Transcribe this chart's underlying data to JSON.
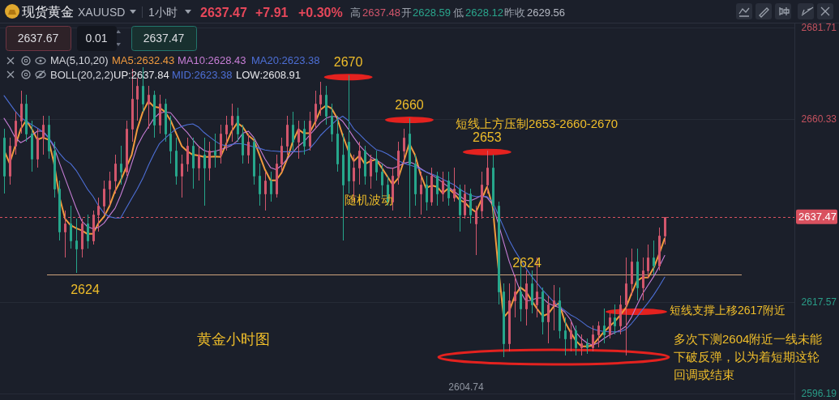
{
  "chart_data": {
    "type": "candlestick",
    "title": "现货黄金",
    "subtitle": "XAUUSD",
    "categories": [
      null,
      null,
      null,
      null,
      null,
      null,
      null,
      null,
      null,
      null,
      null,
      null,
      null,
      null,
      null,
      null,
      null,
      null,
      null,
      null,
      null,
      null,
      null,
      null,
      null,
      null,
      null,
      null,
      null,
      null,
      null,
      null,
      null,
      null,
      null,
      null,
      null,
      null,
      null,
      null,
      null,
      null,
      null,
      null,
      null,
      null,
      null,
      null,
      null,
      null,
      null,
      null,
      null,
      null,
      null,
      null,
      null,
      null,
      null,
      null,
      null,
      null,
      null,
      null,
      null,
      null,
      null,
      null,
      null,
      null,
      null,
      null,
      null,
      null,
      null,
      null,
      null,
      null,
      null,
      null,
      null,
      null,
      null,
      null,
      null,
      null,
      null,
      null,
      null,
      null,
      null,
      null,
      null,
      null,
      null,
      null,
      null,
      null,
      null,
      null,
      null,
      null,
      null,
      null,
      null,
      null,
      null,
      null,
      null,
      null,
      null,
      null,
      null,
      null,
      null,
      null,
      null,
      null,
      null,
      null
    ],
    "ohlc": [
      [
        2656,
        2658,
        2643,
        2647
      ],
      [
        2647,
        2656,
        2645,
        2654
      ],
      [
        2654,
        2662,
        2652,
        2660
      ],
      [
        2660,
        2667,
        2657,
        2664
      ],
      [
        2664,
        2666,
        2655,
        2657
      ],
      [
        2657,
        2660,
        2648,
        2651
      ],
      [
        2651,
        2658,
        2649,
        2656
      ],
      [
        2656,
        2661,
        2652,
        2659
      ],
      [
        2659,
        2661,
        2651,
        2653
      ],
      [
        2653,
        2655,
        2642,
        2644
      ],
      [
        2644,
        2646,
        2632,
        2634
      ],
      [
        2634,
        2639,
        2628,
        2636
      ],
      [
        2636,
        2640,
        2630,
        2632
      ],
      [
        2632,
        2637,
        2624.3,
        2630
      ],
      [
        2630,
        2637,
        2628,
        2636
      ],
      [
        2636,
        2638,
        2630,
        2632
      ],
      [
        2632,
        2639,
        2631,
        2638
      ],
      [
        2638,
        2642,
        2634,
        2640
      ],
      [
        2640,
        2646,
        2638,
        2644
      ],
      [
        2644,
        2648,
        2640,
        2646
      ],
      [
        2646,
        2652,
        2643,
        2650
      ],
      [
        2650,
        2654,
        2645,
        2648
      ],
      [
        2648,
        2660,
        2647,
        2658
      ],
      [
        2658,
        2672,
        2655,
        2665
      ],
      [
        2665,
        2670,
        2660,
        2668
      ],
      [
        2668,
        2672.5,
        2662,
        2664
      ],
      [
        2664,
        2668,
        2658,
        2666
      ],
      [
        2666,
        2667,
        2656,
        2659
      ],
      [
        2659,
        2666,
        2657,
        2664
      ],
      [
        2664,
        2665,
        2655,
        2657
      ],
      [
        2657,
        2661,
        2650,
        2653
      ],
      [
        2653,
        2656,
        2645,
        2647
      ],
      [
        2647,
        2652,
        2642,
        2650
      ],
      [
        2650,
        2656,
        2648,
        2654
      ],
      [
        2654,
        2656,
        2644,
        2649
      ],
      [
        2649,
        2654,
        2646,
        2652
      ],
      [
        2652,
        2656,
        2640,
        2649
      ],
      [
        2649,
        2655,
        2646,
        2653
      ],
      [
        2653,
        2657,
        2649,
        2652
      ],
      [
        2652,
        2659,
        2650,
        2657
      ],
      [
        2657,
        2661,
        2653,
        2659
      ],
      [
        2659,
        2664,
        2655,
        2661
      ],
      [
        2661,
        2663,
        2655,
        2657
      ],
      [
        2657,
        2659,
        2650,
        2652
      ],
      [
        2652,
        2657,
        2650,
        2655
      ],
      [
        2655,
        2656,
        2645,
        2647
      ],
      [
        2647,
        2650,
        2640,
        2643
      ],
      [
        2643,
        2648,
        2639,
        2646
      ],
      [
        2646,
        2648,
        2641,
        2643
      ],
      [
        2643,
        2652,
        2642,
        2650
      ],
      [
        2650,
        2656,
        2648,
        2654
      ],
      [
        2654,
        2661,
        2652,
        2659
      ],
      [
        2659,
        2662,
        2653,
        2655
      ],
      [
        2655,
        2660,
        2651,
        2658
      ],
      [
        2658,
        2660,
        2652,
        2654
      ],
      [
        2654,
        2662,
        2653,
        2660
      ],
      [
        2660,
        2667,
        2658,
        2664
      ],
      [
        2664,
        2669,
        2661,
        2666
      ],
      [
        2666,
        2668,
        2659,
        2661
      ],
      [
        2661,
        2664,
        2655,
        2657
      ],
      [
        2657,
        2661,
        2648,
        2650
      ],
      [
        2652,
        2657,
        2632,
        2645
      ],
      [
        2655,
        2670.5,
        2643,
        2646
      ],
      [
        2646,
        2652,
        2641,
        2649
      ],
      [
        2649,
        2655,
        2645,
        2653
      ],
      [
        2653,
        2654,
        2645,
        2647
      ],
      [
        2647,
        2652,
        2644,
        2651
      ],
      [
        2651,
        2653,
        2646,
        2648
      ],
      [
        2648,
        2650,
        2642,
        2645
      ],
      [
        2645,
        2647,
        2640,
        2641
      ],
      [
        2641,
        2649,
        2639,
        2647
      ],
      [
        2647,
        2655,
        2645,
        2653
      ],
      [
        2653,
        2658,
        2650,
        2656
      ],
      [
        2657,
        2660.5,
        2637.5,
        2650
      ],
      [
        2650,
        2652,
        2640,
        2643
      ],
      [
        2643,
        2648,
        2638,
        2645
      ],
      [
        2645,
        2647,
        2639,
        2641
      ],
      [
        2641,
        2649,
        2640,
        2647
      ],
      [
        2647,
        2648,
        2640,
        2643
      ],
      [
        2643,
        2648,
        2641,
        2646
      ],
      [
        2646,
        2648,
        2640,
        2642
      ],
      [
        2642,
        2649,
        2641,
        2644
      ],
      [
        2644,
        2645,
        2634,
        2638
      ],
      [
        2638,
        2645,
        2637,
        2643
      ],
      [
        2643,
        2644,
        2636,
        2638
      ],
      [
        2636,
        2640,
        2628.5,
        2639
      ],
      [
        2639,
        2648,
        2637,
        2645
      ],
      [
        2645,
        2653,
        2643,
        2649
      ],
      [
        2649,
        2652,
        2637,
        2640
      ],
      [
        2640,
        2641,
        2617,
        2620
      ],
      [
        2620,
        2622,
        2604.74,
        2608
      ],
      [
        2608,
        2622,
        2606,
        2618
      ],
      [
        2618,
        2624,
        2614,
        2620
      ],
      [
        2620,
        2626,
        2613,
        2616
      ],
      [
        2616,
        2625,
        2612,
        2622
      ],
      [
        2622,
        2625,
        2615,
        2617
      ],
      [
        2617,
        2628,
        2614,
        2620
      ],
      [
        2620,
        2621,
        2610,
        2613
      ],
      [
        2613,
        2619,
        2608,
        2617
      ],
      [
        2617,
        2621.5,
        2611,
        2618
      ],
      [
        2618,
        2621,
        2609,
        2611
      ],
      [
        2611,
        2614,
        2605,
        2609
      ],
      [
        2609,
        2613,
        2606,
        2611
      ],
      [
        2611,
        2612,
        2605,
        2607
      ],
      [
        2607,
        2610,
        2605,
        2608
      ],
      [
        2608,
        2609,
        2605.5,
        2607
      ],
      [
        2607,
        2612,
        2606,
        2610
      ],
      [
        2610,
        2613,
        2607,
        2612
      ],
      [
        2612,
        2616,
        2608,
        2610
      ],
      [
        2610,
        2615,
        2609,
        2614
      ],
      [
        2614,
        2617,
        2610,
        2612
      ],
      [
        2612,
        2619,
        2610,
        2617
      ],
      [
        2617,
        2628,
        2605,
        2622
      ],
      [
        2622,
        2630,
        2619,
        2627
      ],
      [
        2627,
        2630,
        2618,
        2621
      ],
      [
        2621,
        2628,
        2618,
        2625
      ],
      [
        2625,
        2631,
        2623,
        2628
      ],
      [
        2628,
        2632,
        2624,
        2626
      ],
      [
        2626,
        2635,
        2625,
        2633
      ],
      [
        2633,
        2637.48,
        2631,
        2637.47
      ]
    ],
    "colors": [
      "#26a68b",
      "#d2566c",
      "#d2566c",
      "#d2566c",
      "#26a68b",
      "#26a68b",
      "#d2566c",
      "#d2566c",
      "#26a68b",
      "#26a68b",
      "#26a68b",
      "#d2566c",
      "#26a68b",
      "#26a68b",
      "#d2566c",
      "#26a68b",
      "#d2566c",
      "#d2566c",
      "#d2566c",
      "#d2566c",
      "#d2566c",
      "#26a68b",
      "#d2566c",
      "#d2566c",
      "#d2566c",
      "#26a68b",
      "#d2566c",
      "#26a68b",
      "#d2566c",
      "#26a68b",
      "#26a68b",
      "#26a68b",
      "#d2566c",
      "#d2566c",
      "#26a68b",
      "#d2566c",
      "#26a68b",
      "#d2566c",
      "#26a68b",
      "#d2566c",
      "#d2566c",
      "#d2566c",
      "#26a68b",
      "#26a68b",
      "#d2566c",
      "#26a68b",
      "#26a68b",
      "#d2566c",
      "#26a68b",
      "#d2566c",
      "#d2566c",
      "#d2566c",
      "#26a68b",
      "#d2566c",
      "#26a68b",
      "#d2566c",
      "#d2566c",
      "#d2566c",
      "#26a68b",
      "#26a68b",
      "#26a68b",
      "#26a68b",
      "#26a68b",
      "#d2566c",
      "#d2566c",
      "#26a68b",
      "#d2566c",
      "#26a68b",
      "#26a68b",
      "#26a68b",
      "#d2566c",
      "#d2566c",
      "#d2566c",
      "#26a68b",
      "#26a68b",
      "#d2566c",
      "#26a68b",
      "#d2566c",
      "#26a68b",
      "#d2566c",
      "#26a68b",
      "#d2566c",
      "#26a68b",
      "#d2566c",
      "#26a68b",
      "#d2566c",
      "#d2566c",
      "#d2566c",
      "#26a68b",
      "#26a68b",
      "#26a68b",
      "#d2566c",
      "#d2566c",
      "#26a68b",
      "#d2566c",
      "#26a68b",
      "#d2566c",
      "#26a68b",
      "#d2566c",
      "#d2566c",
      "#26a68b",
      "#26a68b",
      "#d2566c",
      "#26a68b",
      "#d2566c",
      "#26a68b",
      "#d2566c",
      "#d2566c",
      "#26a68b",
      "#d2566c",
      "#26a68b",
      "#d2566c",
      "#d2566c",
      "#d2566c",
      "#26a68b",
      "#d2566c",
      "#d2566c",
      "#26a68b",
      "#d2566c",
      "#d2566c"
    ],
    "series": [
      {
        "name": "MA5:2632.43",
        "type": "line",
        "color": "#f09a3e",
        "values": [
          2653,
          2650,
          2654,
          2658,
          2660,
          2658,
          2655.5,
          2656,
          2655.5,
          2650,
          2642,
          2637,
          2635.5,
          2634.8,
          2634.3,
          2633.5,
          2633.5,
          2636,
          2637.5,
          2640,
          2643.5,
          2646,
          2649,
          2652,
          2658,
          2662,
          2664.5,
          2663.2,
          2663,
          2662,
          2660,
          2657,
          2654,
          2652.8,
          2652,
          2651.8,
          2651.5,
          2651.5,
          2651.6,
          2651.5,
          2654.5,
          2657.5,
          2659.4,
          2658.5,
          2656.5,
          2655.4,
          2652,
          2648.5,
          2646,
          2646,
          2647.8,
          2651,
          2655,
          2657.9,
          2657,
          2657,
          2659.5,
          2662.5,
          2663.5,
          2662.8,
          2660.5,
          2656.5,
          2653,
          2650.5,
          2651.8,
          2649.8,
          2650.5,
          2650.9,
          2649,
          2647,
          2645,
          2646.5,
          2650.5,
          2654.6,
          2652,
          2647.5,
          2644.2,
          2644.8,
          2644.5,
          2643,
          2644.1,
          2643,
          2641.5,
          2640.8,
          2639.5,
          2638.6,
          2641.5,
          2644.5,
          2640,
          2626,
          2614,
          2615.5,
          2619,
          2621,
          2620,
          2618,
          2616,
          2614.3,
          2614.8,
          2616.5,
          2617.3,
          2613,
          2610.6,
          2608.5,
          2607.2,
          2607.2,
          2607.4,
          2609,
          2610.5,
          2611.8,
          2613,
          2614.5,
          2616.2,
          2619.5,
          2622.5,
          2623.3,
          2623.3,
          2625.5,
          2628.8,
          2632.43
        ]
      },
      {
        "name": "MA10:2628.43",
        "type": "line",
        "color": "#c77ed6",
        "values": [
          2660.5,
          2658.5,
          2656,
          2654.8,
          2655.5,
          2656.5,
          2657.5,
          2657.5,
          2656,
          2653.8,
          2650,
          2646.5,
          2643,
          2639.5,
          2636.5,
          2635.2,
          2634.7,
          2635,
          2636,
          2637.8,
          2639.5,
          2642.5,
          2646,
          2650,
          2654,
          2656.5,
          2658.5,
          2660.5,
          2661.7,
          2662,
          2661.8,
          2660.2,
          2658.5,
          2657.2,
          2655.5,
          2654,
          2653,
          2652.6,
          2652.8,
          2653.2,
          2653.6,
          2654.2,
          2655.2,
          2657,
          2657.5,
          2656,
          2653.5,
          2651,
          2649,
          2648.5,
          2649.5,
          2651,
          2652.5,
          2654,
          2655,
          2656.5,
          2658,
          2659.5,
          2660.5,
          2661,
          2660.8,
          2659.8,
          2658,
          2656,
          2654.2,
          2652.8,
          2651.5,
          2650.8,
          2650,
          2649,
          2648.8,
          2649.3,
          2650,
          2650.3,
          2649.8,
          2648.8,
          2648,
          2647.3,
          2646.5,
          2645.5,
          2644.5,
          2643.5,
          2642.5,
          2641.4,
          2641.2,
          2641.8,
          2642.5,
          2642,
          2640.3,
          2636,
          2631.5,
          2627,
          2623.5,
          2620,
          2617.8,
          2618,
          2618.5,
          2618.5,
          2617.3,
          2616.7,
          2616.3,
          2615.2,
          2613.5,
          2610.5,
          2609,
          2608,
          2607.5,
          2608,
          2609,
          2609.8,
          2610.4,
          2611,
          2611.9,
          2614,
          2616.8,
          2619.5,
          2621.5,
          2623.5,
          2625.8,
          2628.43
        ]
      },
      {
        "name": "MA20:2623.38",
        "type": "line",
        "color": "#4d6fd6",
        "values": [
          2665.8,
          2664,
          2662.2,
          2660.7,
          2659.8,
          2659,
          2658.2,
          2657.3,
          2656,
          2654.2,
          2652.3,
          2650.8,
          2649.9,
          2648.3,
          2646.2,
          2644,
          2642.3,
          2640.1,
          2638.3,
          2637.5,
          2637.2,
          2637.2,
          2639.5,
          2641.8,
          2644,
          2646.5,
          2649.5,
          2652.2,
          2654.6,
          2655.8,
          2657,
          2658,
          2658.6,
          2659,
          2659.2,
          2658.5,
          2657.2,
          2656.2,
          2655.2,
          2654.4,
          2654.1,
          2654.4,
          2654.6,
          2654.5,
          2654.2,
          2653.8,
          2653.5,
          2653.1,
          2652.9,
          2652.8,
          2652.7,
          2652.7,
          2652.7,
          2652.7,
          2652.8,
          2653.3,
          2654.8,
          2656.5,
          2657.8,
          2659,
          2660.2,
          2661,
          2660,
          2658,
          2656.8,
          2655.5,
          2654.3,
          2653.2,
          2652.8,
          2652.2,
          2651.4,
          2650.6,
          2650,
          2649.6,
          2649.2,
          2648.6,
          2648,
          2647.5,
          2647,
          2646.3,
          2645.6,
          2645,
          2644,
          2643.2,
          2642.5,
          2642.2,
          2642.2,
          2642.2,
          2641,
          2638,
          2635,
          2632,
          2629.6,
          2627.5,
          2625.5,
          2623.6,
          2622,
          2620.4,
          2619,
          2617.6,
          2616.6,
          2615.6,
          2614.6,
          2613.9,
          2613,
          2612,
          2611.3,
          2610.9,
          2610.7,
          2610.6,
          2610.6,
          2610.6,
          2611.2,
          2612.5,
          2614.1,
          2615.8,
          2617.4,
          2619.2,
          2621.2,
          2623.38
        ]
      }
    ],
    "ylim": [
      2594.67,
      2682.85
    ],
    "yticks": [
      2681.71,
      2660.33,
      2617.57,
      2596.19
    ],
    "grid": "y",
    "tick_labels": "y",
    "legend": "top left",
    "ref_lines": [
      {
        "axis": "y",
        "value": 2624,
        "color": "#cda47c"
      },
      {
        "axis": "y",
        "value": 2637.47,
        "color": "#d9515f",
        "line_style": "dotted"
      }
    ],
    "annotations": [
      "1小时",
      "2637.47",
      "+7.91",
      "+0.30%",
      "高",
      "2637.48",
      "开",
      "2628.59",
      "低",
      "2628.12",
      "昨收",
      "2629.56",
      "2637.67",
      "0.01",
      "2637.47",
      "MA(5,10,20)",
      "BOLL(20,2,2)",
      "UP:2637.84",
      "MID:2623.38",
      "LOW:2608.91",
      {
        "text": "2670",
        "y": 2670.5
      },
      {
        "text": "2660",
        "y": 2660.5
      },
      {
        "text": "2653",
        "y": 2653
      },
      "短线上方压制2653-2660-2670",
      "随机波动",
      {
        "text": "2624",
        "y": 2624
      },
      "短线支撑上移2617附近",
      "黄金小时图",
      "多次下测2604附近一线未能下破反弹，以为着短期这轮回调或结束",
      "2604.74",
      {
        "text": "2624",
        "y": 2624
      },
      "2637.47"
    ]
  }
}
